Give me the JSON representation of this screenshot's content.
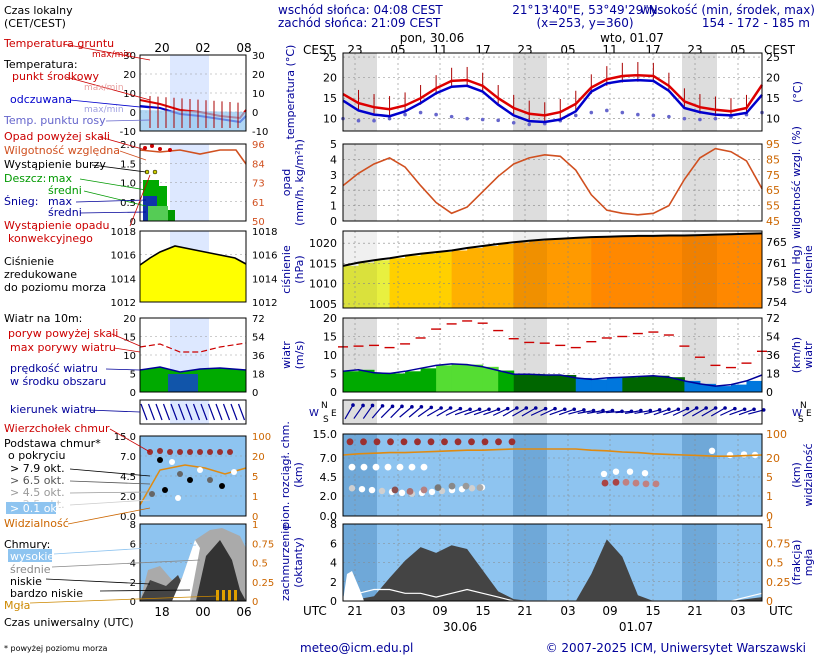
{
  "header": {
    "sunrise": "wschód słońca: 04:08 CEST",
    "sunset": "zachód słońca: 21:09 CEST",
    "coords": "21°13'40\"E, 53°49'29\"N",
    "grid": "(x=253, y=360)",
    "elevation_title": "wysokość (min, środek, max)",
    "elevation_values": "154 - 172 - 185 m",
    "day1": "pon, 30.06",
    "day2": "wto, 01.07",
    "cest_left": "CEST",
    "cest_right": "CEST",
    "utc_left": "UTC",
    "utc_right": "UTC",
    "date_bottom1": "30.06",
    "date_bottom2": "01.07"
  },
  "legend": {
    "local_time": "Czas lokalny",
    "local_time2": "(CET/CEST)",
    "top_ticks": [
      "20",
      "02",
      "08"
    ],
    "bottom_ticks": [
      "18",
      "00",
      "06"
    ],
    "soil_temp": "Temperatura gruntu",
    "soil_maxmin": "max/min",
    "temperature": "Temperatura:",
    "midpoint": "punkt środkowy",
    "midpoint_maxmin": "max/min",
    "apparent": "odczuwana",
    "apparent_maxmin": "max/min",
    "dewpoint": "Temp. punktu rosy",
    "precip_over": "Opad powyżej skali",
    "humidity": "Wilgotność względna",
    "storm": "Wystąpienie burzy",
    "rain": "Deszcz:",
    "rain_max": "max",
    "rain_mean": "średni",
    "snow": "Śnieg:",
    "snow_max": "max",
    "snow_mean": "średni",
    "conv1": "Wystąpienie opadu",
    "conv2": "konwekcyjnego",
    "pressure1": "Ciśnienie",
    "pressure2": "zredukowane",
    "pressure3": "do poziomu morza",
    "wind10": "Wiatr na 10m:",
    "gust_over": "poryw powyżej skali",
    "gust_max": "max porywy wiatru",
    "wind_speed1": "prędkość wiatru",
    "wind_speed2": "w środku obszaru",
    "wind_dir": "kierunek wiatru",
    "cloud_whirl": "Wierzchołek chmur",
    "cloud_base1": "Podstawa chmur*",
    "cloud_base2": "o pokryciu",
    "okt1": "> 7.9 okt.",
    "okt2": "> 6.5 okt.",
    "okt3": "> 4.5 okt.",
    "okt4": "> 2.5 okt.",
    "okt5": "> 0.1 okt.",
    "visibility": "Widzialność",
    "clouds": "Chmury:",
    "cl_high": "wysokie",
    "cl_mid": "średnie",
    "cl_low": "niskie",
    "cl_vlow": "bardzo niskie",
    "fog": "Mgła",
    "utc_label": "Czas uniwersalny (UTC)",
    "footnote": "* powyżej poziomu morza"
  },
  "footer": {
    "email": "meteo@icm.edu.pl",
    "copyright": "© 2007-2025 ICM, Uniwersytet Warszawski"
  },
  "colors": {
    "temp_red": "#dd0000",
    "temp_blue": "#0000cc",
    "dew": "#6666cc",
    "humid": "#d05020",
    "wind_green": "#00aa00",
    "axis_blue": "#000099",
    "axis_orange": "#cc6600",
    "sky": "#8ec4f0",
    "night": "#dddddd"
  },
  "chart_data": [
    {
      "id": "temperature",
      "type": "line",
      "title_left": "temperatura (°C)",
      "title_right": "(°C)",
      "ylim": [
        7,
        26
      ],
      "yticks": [
        10,
        15,
        20,
        25
      ],
      "x_hours_cest": [
        "23",
        "05",
        "11",
        "17",
        "23",
        "05",
        "11",
        "17",
        "23",
        "05"
      ],
      "series": [
        {
          "name": "punkt środkowy",
          "values": [
            16,
            13.8,
            12.8,
            12.3,
            13.2,
            15,
            17.4,
            19.2,
            19.4,
            18,
            15,
            12.6,
            11.2,
            10.8,
            11.6,
            13.6,
            17.6,
            19.6,
            20.4,
            20.6,
            20.4,
            18,
            14.2,
            12.8,
            12.2,
            11.8,
            12.6,
            18.2
          ]
        },
        {
          "name": "odczuwana",
          "values": [
            14.4,
            12,
            11,
            10.6,
            11.8,
            13.8,
            16.2,
            17.8,
            18,
            16.6,
            13.4,
            10.8,
            9.4,
            9.2,
            9.8,
            11.8,
            16.6,
            18.6,
            19.2,
            19.4,
            19.2,
            16.8,
            12.6,
            11.6,
            11,
            10.8,
            11.4,
            15.8
          ]
        },
        {
          "name": "Temp. punktu rosy",
          "values": [
            10,
            9.5,
            9.5,
            10,
            11,
            11.5,
            11,
            10.5,
            10,
            9.8,
            9.6,
            9,
            8.6,
            8.8,
            9.5,
            10.8,
            11.5,
            12,
            11.5,
            11,
            10.8,
            10.5,
            10,
            9.8,
            10,
            10.4,
            11,
            11.5
          ]
        }
      ]
    },
    {
      "id": "precip_humidity",
      "type": "line",
      "title_left": "opad (mm/h, kg/m²h)",
      "title_right": "wilgotność wzgl. (%)",
      "ylim": [
        0,
        5
      ],
      "yticks": [
        0,
        1,
        2,
        3,
        4,
        5
      ],
      "y2lim": [
        45,
        95
      ],
      "y2ticks": [
        45,
        55,
        65,
        75,
        85,
        95
      ],
      "series": [
        {
          "name": "Wilgotność względna",
          "values": [
            68,
            76,
            82,
            86,
            80,
            68,
            57,
            50,
            54,
            64,
            74,
            82,
            86,
            88,
            87,
            78,
            62,
            52,
            50,
            49,
            50,
            55,
            72,
            86,
            92,
            90,
            84,
            66
          ]
        }
      ]
    },
    {
      "id": "pressure",
      "type": "area",
      "title_left": "ciśnienie (hPa)",
      "title_right": "(mm Hg)",
      "ylim": [
        1004,
        1023
      ],
      "yticks": [
        1005,
        1010,
        1015,
        1020
      ],
      "y2ticks": [
        754,
        758,
        761,
        765
      ],
      "series": [
        {
          "name": "ciśnienie",
          "values": [
            1014.4,
            1015.2,
            1015.8,
            1016.3,
            1016.9,
            1017.4,
            1017.8,
            1018.2,
            1018.8,
            1019.3,
            1019.8,
            1020.2,
            1020.6,
            1020.9,
            1021.1,
            1021.3,
            1021.5,
            1021.6,
            1021.7,
            1021.8,
            1021.8,
            1021.9,
            1021.9,
            1022.0,
            1022.1,
            1022.2,
            1022.3,
            1022.4
          ]
        }
      ]
    },
    {
      "id": "wind",
      "type": "area",
      "title_left": "wiatr (m/s)",
      "title_right": "(km/h) wiatr",
      "ylim": [
        0,
        20
      ],
      "yticks": [
        0,
        5,
        10,
        15,
        20
      ],
      "y2ticks": [
        0,
        18,
        36,
        54,
        72
      ],
      "series": [
        {
          "name": "prędkość wiatru",
          "values": [
            5.6,
            6.0,
            5.2,
            5.0,
            5.6,
            6.4,
            7.2,
            7.6,
            7.4,
            6.8,
            5.8,
            4.8,
            4.8,
            4.6,
            4.6,
            3.8,
            3.4,
            3.8,
            4.0,
            4.2,
            4.4,
            4.0,
            3.0,
            2.2,
            1.6,
            2.0,
            3.0,
            4.6
          ]
        },
        {
          "name": "max porywy wiatru",
          "values": [
            12.2,
            12.4,
            12.6,
            12.0,
            13.0,
            14.6,
            17.0,
            18.4,
            19.2,
            18.6,
            16.6,
            14.4,
            13.4,
            13.2,
            12.6,
            12.0,
            13.6,
            14.6,
            15.0,
            15.8,
            16.2,
            15.4,
            12.4,
            9.4,
            7.2,
            6.6,
            7.8,
            11.0
          ]
        }
      ]
    },
    {
      "id": "wind_dir",
      "type": "scatter",
      "title_left": "W S",
      "title_right": "N E",
      "series": [
        {
          "name": "kierunek wiatru",
          "values": [
            210,
            215,
            220,
            225,
            230,
            235,
            240,
            245,
            250,
            250,
            245,
            240,
            240,
            245,
            250,
            255,
            260,
            260,
            265,
            260,
            255,
            250,
            245,
            240,
            240,
            245,
            250,
            255
          ]
        }
      ]
    },
    {
      "id": "clouds_visibility",
      "type": "scatter",
      "title_left": "pion. rozciągł. chm. (km)",
      "title_right": "(km) widzialność",
      "ylim": [
        0,
        15
      ],
      "yticks": [
        0,
        2,
        4.5,
        7,
        15
      ],
      "ytick_labels": [
        "0.0",
        "2.0",
        "4.5",
        "7.0",
        "15.0"
      ],
      "y2ticks": [
        "0",
        "1",
        "5",
        "20",
        "100"
      ],
      "series": [
        {
          "name": "Widzialność",
          "values": [
            8,
            8.4,
            8.6,
            8.8,
            8.8,
            9.0,
            9.2,
            9.4,
            9.6,
            9.6,
            9.8,
            10,
            10,
            10,
            10,
            10,
            9.6,
            9.4,
            9.0,
            8.8,
            8.4,
            8.2,
            8.0,
            7.8,
            7.6,
            7.6,
            7.8,
            8.0
          ]
        }
      ]
    },
    {
      "id": "cloud_cover",
      "type": "area",
      "title_left": "zachmurzenie (oktanty)",
      "title_right": "(frakcja) mgła",
      "ylim": [
        0,
        8
      ],
      "yticks": [
        0,
        2,
        4,
        6,
        8
      ],
      "y2ticks": [
        "0",
        "0.25",
        "0.5",
        "0.75",
        "1"
      ],
      "x_hours_utc": [
        "21",
        "03",
        "09",
        "15",
        "21",
        "03",
        "09",
        "15",
        "21",
        "03"
      ],
      "series": [
        {
          "name": "niskie",
          "values": [
            0.3,
            0.2,
            0.5,
            2.4,
            4.2,
            5.6,
            5.0,
            5.8,
            5.4,
            3.2,
            1.0,
            0.2,
            0,
            0,
            0,
            0,
            2.8,
            6.4,
            4.6,
            0.6,
            0,
            0,
            0,
            0,
            0,
            0,
            0.2,
            0.4
          ]
        },
        {
          "name": "wysokie",
          "values": [
            0.1,
            0.2,
            0.3,
            0.3,
            0.2,
            0.2,
            0.1,
            0.2,
            0.3,
            0.2,
            0.1,
            0,
            0,
            0,
            0,
            0,
            0,
            0,
            0,
            0,
            0,
            0,
            0,
            0,
            0,
            0,
            0.1,
            0.2
          ]
        }
      ]
    }
  ]
}
